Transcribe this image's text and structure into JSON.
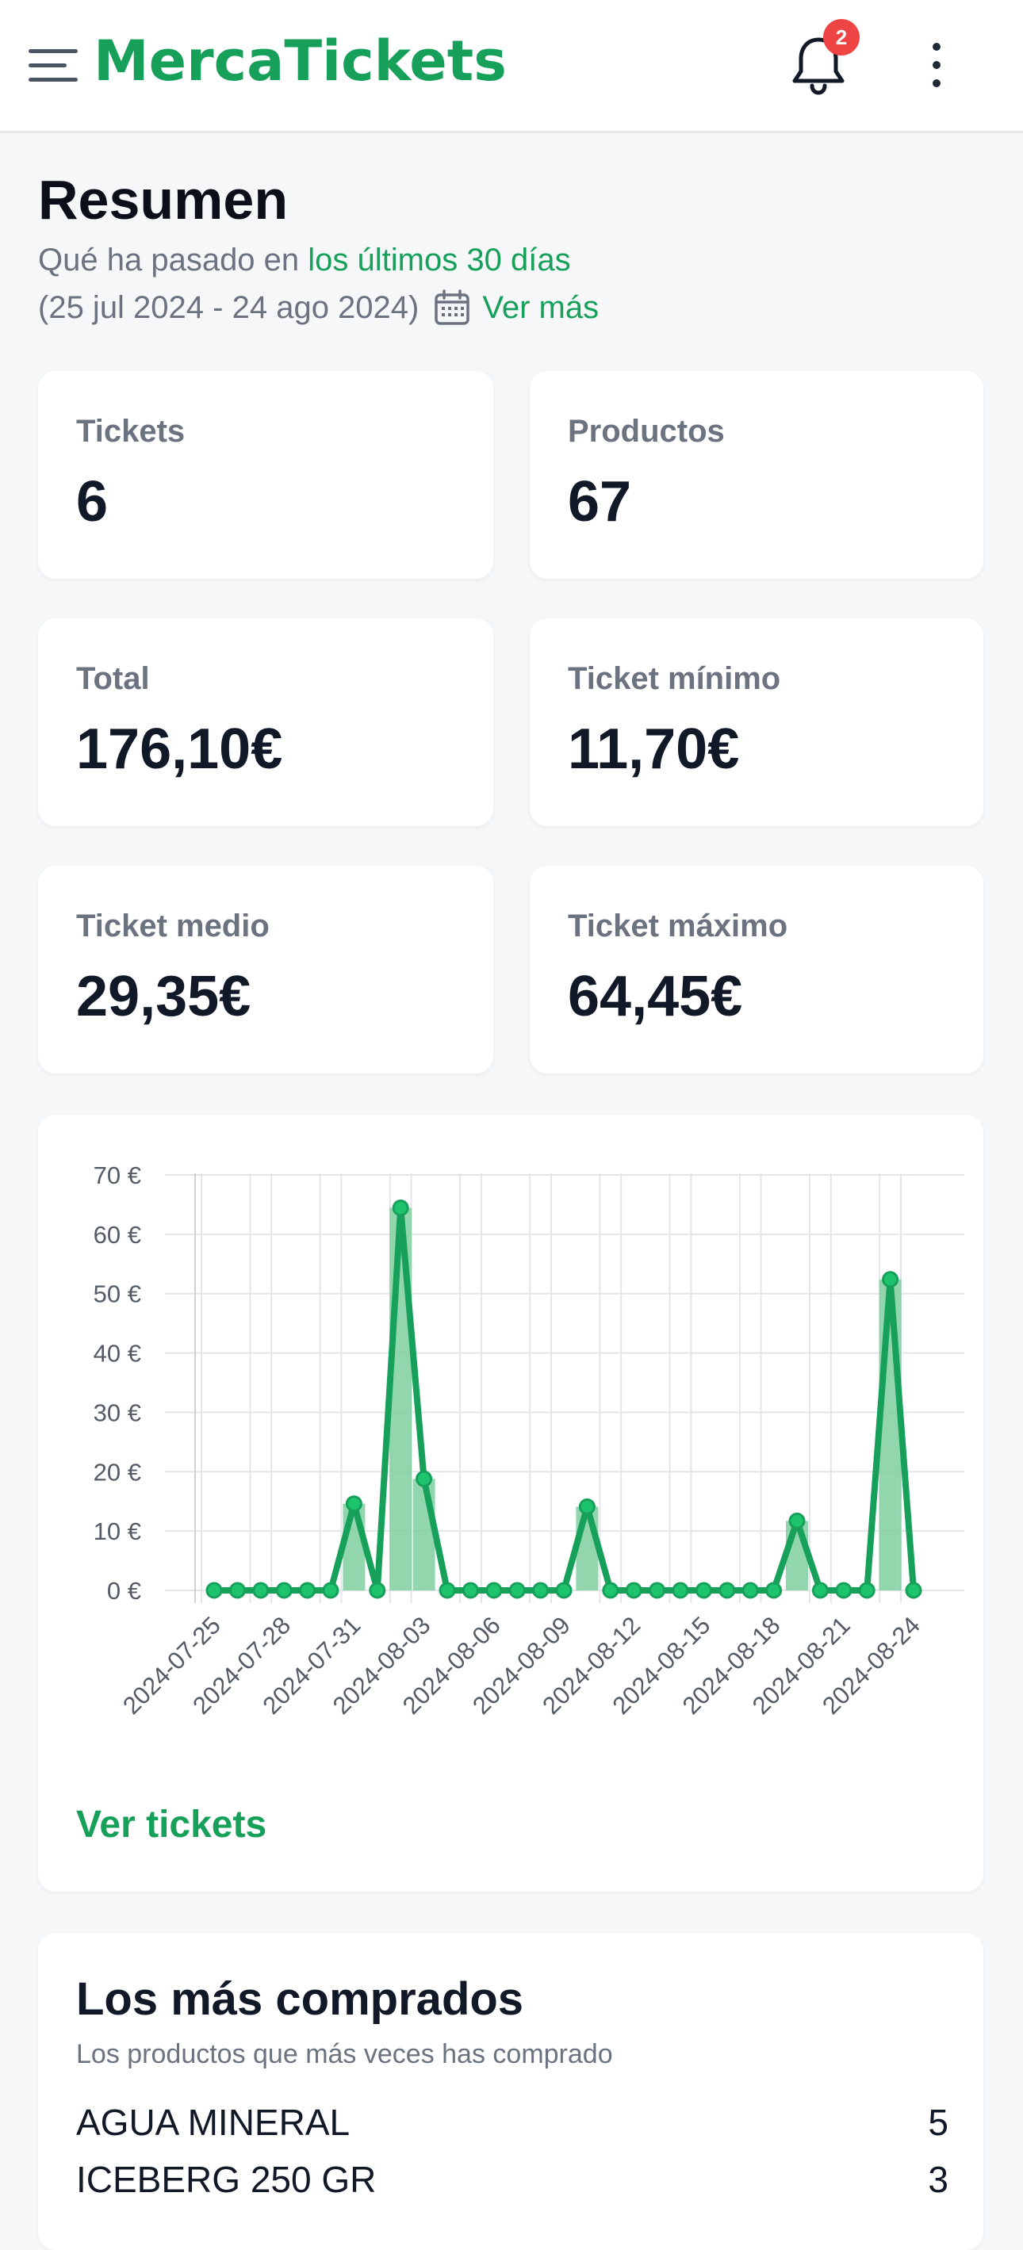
{
  "app": {
    "brand": "MercaTickets",
    "notifications_count": "2"
  },
  "summary": {
    "title": "Resumen",
    "subtitle_prefix": "Qué ha pasado en",
    "subtitle_link": "los últimos 30 días",
    "date_range": "(25 jul 2024 - 24 ago 2024)",
    "ver_mas": "Ver más"
  },
  "stats": [
    {
      "label": "Tickets",
      "value": "6"
    },
    {
      "label": "Productos",
      "value": "67"
    },
    {
      "label": "Total",
      "value": "176,10€"
    },
    {
      "label": "Ticket mínimo",
      "value": "11,70€"
    },
    {
      "label": "Ticket medio",
      "value": "29,35€"
    },
    {
      "label": "Ticket máximo",
      "value": "64,45€"
    }
  ],
  "chart_data": {
    "type": "line",
    "y_tick_labels": [
      "70 €",
      "60 €",
      "50 €",
      "40 €",
      "30 €",
      "20 €",
      "10 €",
      "0 €"
    ],
    "x_tick_labels": [
      "2024-07-25",
      "2024-07-28",
      "2024-07-31",
      "2024-08-03",
      "2024-08-06",
      "2024-08-09",
      "2024-08-12",
      "2024-08-15",
      "2024-08-18",
      "2024-08-21",
      "2024-08-24"
    ],
    "ylim": [
      0,
      70
    ],
    "grid": true,
    "color": "#16a05a",
    "x": [
      "2024-07-25",
      "2024-07-26",
      "2024-07-27",
      "2024-07-28",
      "2024-07-29",
      "2024-07-30",
      "2024-07-31",
      "2024-08-01",
      "2024-08-02",
      "2024-08-03",
      "2024-08-04",
      "2024-08-05",
      "2024-08-06",
      "2024-08-07",
      "2024-08-08",
      "2024-08-09",
      "2024-08-10",
      "2024-08-11",
      "2024-08-12",
      "2024-08-13",
      "2024-08-14",
      "2024-08-15",
      "2024-08-16",
      "2024-08-17",
      "2024-08-18",
      "2024-08-19",
      "2024-08-20",
      "2024-08-21",
      "2024-08-22",
      "2024-08-23",
      "2024-08-24"
    ],
    "values": [
      0,
      0,
      0,
      0,
      0,
      0,
      14.6,
      0,
      64.45,
      18.8,
      0,
      0,
      0,
      0,
      0,
      0,
      14.1,
      0,
      0,
      0,
      0,
      0,
      0,
      0,
      0,
      11.7,
      0,
      0,
      0,
      52.4,
      0
    ]
  },
  "chart_link": "Ver tickets",
  "top_products": {
    "title": "Los más comprados",
    "subtitle": "Los productos que más veces has comprado",
    "items": [
      {
        "name": "AGUA MINERAL",
        "count": "5"
      },
      {
        "name": "ICEBERG 250 GR",
        "count": "3"
      }
    ]
  }
}
